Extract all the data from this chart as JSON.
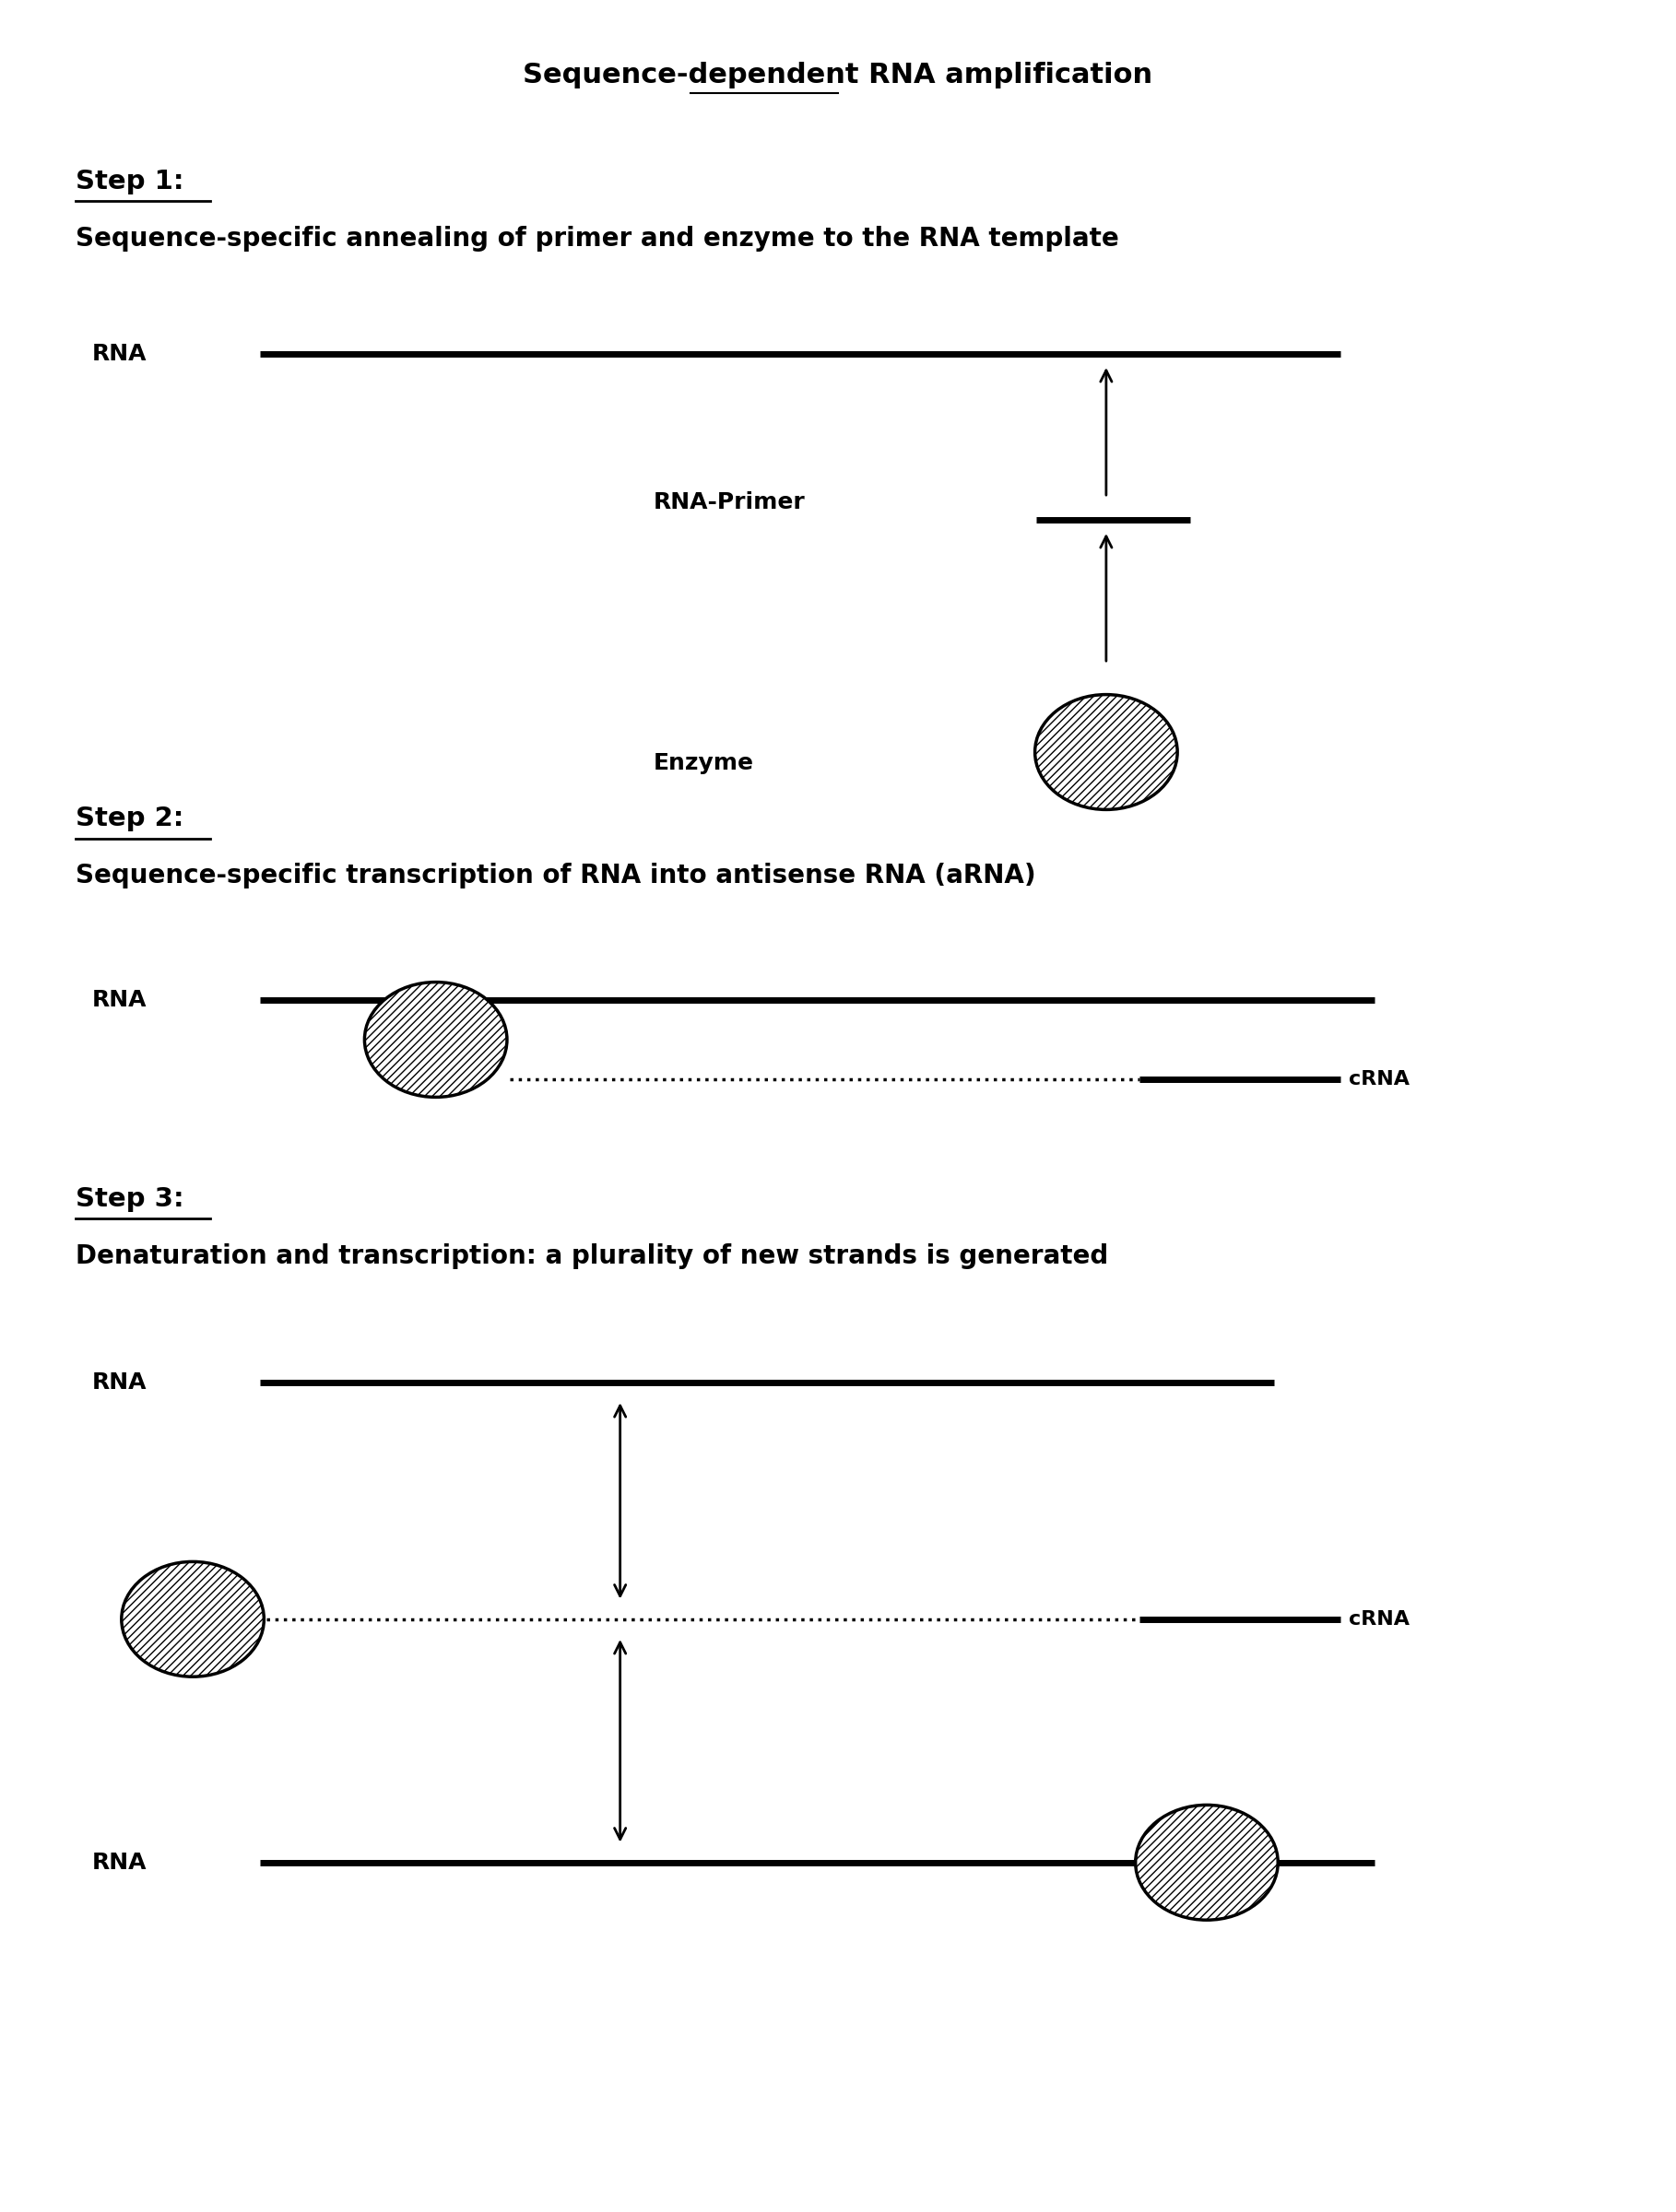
{
  "title": "Sequence-dependent RNA amplification",
  "bg_color": "#ffffff",
  "step1_label": "Step 1:",
  "step1_desc": "Sequence-specific annealing of primer and enzyme to the RNA template",
  "step2_label": "Step 2:",
  "step2_desc": "Sequence-specific transcription of RNA into antisense RNA (aRNA)",
  "step3_label": "Step 3:",
  "step3_desc": "Denaturation and transcription: a plurality of new strands is generated",
  "rna_label": "RNA",
  "crna_label": "cRNA",
  "enzyme_label": "Enzyme",
  "rna_primer_label": "RNA-Primer",
  "fig_width": 18.18,
  "fig_height": 24.0
}
